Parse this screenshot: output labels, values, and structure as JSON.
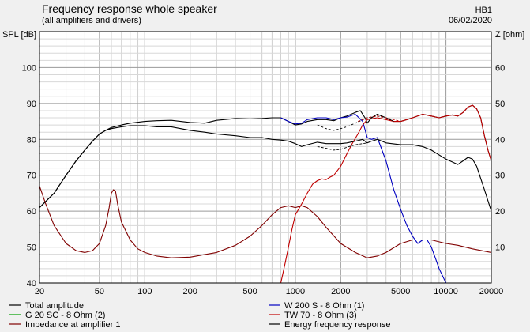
{
  "header": {
    "title": "Frequency response whole speaker",
    "subtitle": "(all amplifiers and drivers)",
    "ref": "HB1",
    "date": "06/02/2020"
  },
  "chart_data": {
    "type": "line",
    "title": "Frequency response whole speaker",
    "subtitle": "(all amplifiers and drivers)",
    "ylabel_left": "SPL [dB]",
    "ylabel_right": "Z [ohm]",
    "xscale": "log",
    "xlim": [
      20,
      20000
    ],
    "ylim_left": [
      40,
      110
    ],
    "ylim_right": [
      0,
      70
    ],
    "grid": true,
    "x_ticks": [
      20,
      50,
      100,
      200,
      500,
      1000,
      2000,
      5000,
      10000,
      20000
    ],
    "x_tick_labels": [
      "20",
      "50",
      "100",
      "200",
      "500",
      "1000",
      "2000",
      "5000",
      "10000",
      "20000"
    ],
    "y_ticks_left": [
      40,
      50,
      60,
      70,
      80,
      90,
      100
    ],
    "y_ticks_right": [
      10,
      20,
      30,
      40,
      50,
      60
    ],
    "legend_position": "bottom",
    "series": [
      {
        "name": "Total amplitude",
        "color": "#000000",
        "axis": "left",
        "points": [
          [
            20,
            61
          ],
          [
            25,
            65
          ],
          [
            30,
            70
          ],
          [
            35,
            74
          ],
          [
            40,
            77
          ],
          [
            45,
            79.5
          ],
          [
            50,
            81.5
          ],
          [
            55,
            82.5
          ],
          [
            60,
            83.3
          ],
          [
            70,
            84
          ],
          [
            80,
            84.5
          ],
          [
            100,
            85
          ],
          [
            120,
            85.2
          ],
          [
            150,
            85.3
          ],
          [
            200,
            84.7
          ],
          [
            250,
            84.5
          ],
          [
            300,
            85.3
          ],
          [
            400,
            85.8
          ],
          [
            500,
            85.7
          ],
          [
            600,
            85.8
          ],
          [
            700,
            86
          ],
          [
            800,
            86
          ],
          [
            900,
            85
          ],
          [
            1000,
            84
          ],
          [
            1100,
            84.3
          ],
          [
            1200,
            85
          ],
          [
            1400,
            85.5
          ],
          [
            1600,
            85.5
          ],
          [
            1800,
            85.2
          ],
          [
            2000,
            86
          ],
          [
            2200,
            86.5
          ],
          [
            2500,
            87.5
          ],
          [
            2700,
            88
          ],
          [
            2900,
            86
          ],
          [
            3000,
            84.5
          ],
          [
            3200,
            86
          ],
          [
            3500,
            87
          ],
          [
            4000,
            86
          ],
          [
            4500,
            85
          ],
          [
            5000,
            85
          ],
          [
            5500,
            85.5
          ],
          [
            6000,
            86
          ],
          [
            7000,
            87
          ],
          [
            8000,
            86.5
          ],
          [
            9000,
            86
          ],
          [
            10000,
            86.5
          ],
          [
            11000,
            86.8
          ],
          [
            12000,
            86.5
          ],
          [
            13000,
            87.5
          ],
          [
            14000,
            89
          ],
          [
            15000,
            89.5
          ],
          [
            16000,
            88.5
          ],
          [
            17000,
            86
          ],
          [
            18000,
            81
          ],
          [
            19000,
            77
          ],
          [
            20000,
            74
          ]
        ]
      },
      {
        "name": "W 200 S - 8 Ohm (1)",
        "color": "#0000c0",
        "axis": "left",
        "points": [
          [
            800,
            86
          ],
          [
            900,
            85
          ],
          [
            1000,
            84.3
          ],
          [
            1100,
            84.5
          ],
          [
            1200,
            85.5
          ],
          [
            1400,
            86
          ],
          [
            1600,
            86
          ],
          [
            1800,
            85.5
          ],
          [
            2000,
            86
          ],
          [
            2200,
            86.2
          ],
          [
            2500,
            87
          ],
          [
            2800,
            85
          ],
          [
            3000,
            80.5
          ],
          [
            3200,
            80
          ],
          [
            3500,
            80.5
          ],
          [
            4000,
            74
          ],
          [
            4500,
            66
          ],
          [
            5000,
            60.5
          ],
          [
            5500,
            56
          ],
          [
            6000,
            53
          ],
          [
            6500,
            51
          ],
          [
            7000,
            52
          ],
          [
            7500,
            52
          ],
          [
            8000,
            50
          ],
          [
            8500,
            47
          ],
          [
            9000,
            44
          ],
          [
            10000,
            40
          ]
        ]
      },
      {
        "name": "G 20 SC - 8 Ohm (2)",
        "color": "#00a000",
        "axis": "left",
        "points": [
          [
            20,
            40
          ],
          [
            20000,
            40
          ]
        ]
      },
      {
        "name": "TW 70 - 8 Ohm (3)",
        "color": "#c00000",
        "axis": "left",
        "points": [
          [
            800,
            40
          ],
          [
            850,
            45
          ],
          [
            900,
            50
          ],
          [
            950,
            55
          ],
          [
            1000,
            59
          ],
          [
            1100,
            62
          ],
          [
            1200,
            65
          ],
          [
            1300,
            67.5
          ],
          [
            1400,
            68.5
          ],
          [
            1500,
            69
          ],
          [
            1600,
            68.8
          ],
          [
            1700,
            69.5
          ],
          [
            1800,
            70
          ],
          [
            2000,
            72.5
          ],
          [
            2200,
            76
          ],
          [
            2400,
            79
          ],
          [
            2600,
            81.5
          ],
          [
            2800,
            84
          ],
          [
            3000,
            85.5
          ],
          [
            3500,
            86
          ],
          [
            4000,
            85.5
          ],
          [
            4500,
            85
          ],
          [
            5000,
            85
          ],
          [
            5500,
            85.5
          ],
          [
            6000,
            86
          ],
          [
            7000,
            87
          ],
          [
            8000,
            86.5
          ],
          [
            9000,
            86
          ],
          [
            10000,
            86.5
          ],
          [
            11000,
            86.8
          ],
          [
            12000,
            86.5
          ],
          [
            13000,
            87.5
          ],
          [
            14000,
            89
          ],
          [
            15000,
            89.5
          ],
          [
            16000,
            88.5
          ],
          [
            17000,
            86
          ],
          [
            18000,
            81
          ],
          [
            19000,
            77
          ],
          [
            20000,
            74
          ]
        ]
      },
      {
        "name": "Impedance at amplifier 1",
        "color": "#800000",
        "axis": "right",
        "points": [
          [
            20,
            27
          ],
          [
            22,
            22
          ],
          [
            25,
            16
          ],
          [
            30,
            11
          ],
          [
            35,
            9
          ],
          [
            40,
            8.5
          ],
          [
            45,
            9
          ],
          [
            50,
            11
          ],
          [
            55,
            16
          ],
          [
            58,
            21
          ],
          [
            60,
            25
          ],
          [
            62,
            26
          ],
          [
            64,
            25.5
          ],
          [
            66,
            22
          ],
          [
            70,
            17
          ],
          [
            80,
            12
          ],
          [
            90,
            9.5
          ],
          [
            100,
            8.5
          ],
          [
            120,
            7.5
          ],
          [
            150,
            7
          ],
          [
            200,
            7.2
          ],
          [
            300,
            8.5
          ],
          [
            400,
            10.5
          ],
          [
            500,
            13
          ],
          [
            600,
            16
          ],
          [
            700,
            19
          ],
          [
            800,
            21
          ],
          [
            900,
            21.5
          ],
          [
            1000,
            21
          ],
          [
            1100,
            21.5
          ],
          [
            1200,
            21
          ],
          [
            1400,
            18.5
          ],
          [
            1600,
            15.5
          ],
          [
            2000,
            11
          ],
          [
            2500,
            8.5
          ],
          [
            3000,
            7
          ],
          [
            3500,
            7.5
          ],
          [
            4000,
            8.5
          ],
          [
            5000,
            11
          ],
          [
            6000,
            12
          ],
          [
            7000,
            12
          ],
          [
            8000,
            12
          ],
          [
            10000,
            11
          ],
          [
            12000,
            10.5
          ],
          [
            15000,
            9.5
          ],
          [
            20000,
            8.5
          ]
        ]
      },
      {
        "name": "Energy frequency response",
        "color": "#000000",
        "axis": "left",
        "points": [
          [
            20,
            61
          ],
          [
            25,
            65
          ],
          [
            30,
            70
          ],
          [
            35,
            74
          ],
          [
            40,
            77
          ],
          [
            45,
            79.5
          ],
          [
            50,
            81.5
          ],
          [
            55,
            82.5
          ],
          [
            60,
            83
          ],
          [
            70,
            83.5
          ],
          [
            80,
            83.8
          ],
          [
            100,
            83.8
          ],
          [
            120,
            83.5
          ],
          [
            150,
            83.5
          ],
          [
            200,
            82.5
          ],
          [
            250,
            82
          ],
          [
            300,
            81.5
          ],
          [
            400,
            81
          ],
          [
            500,
            80.5
          ],
          [
            600,
            80.5
          ],
          [
            700,
            80
          ],
          [
            800,
            79.8
          ],
          [
            900,
            79.5
          ],
          [
            1000,
            78.8
          ],
          [
            1100,
            78
          ],
          [
            1200,
            78.5
          ],
          [
            1400,
            79.2
          ],
          [
            1600,
            78.8
          ],
          [
            2000,
            78.8
          ],
          [
            2200,
            79
          ],
          [
            2500,
            79.5
          ],
          [
            2800,
            80
          ],
          [
            3000,
            79
          ],
          [
            3200,
            79.5
          ],
          [
            3500,
            80
          ],
          [
            4000,
            79
          ],
          [
            5000,
            78.5
          ],
          [
            6000,
            78.5
          ],
          [
            7000,
            78
          ],
          [
            8000,
            77
          ],
          [
            10000,
            74.5
          ],
          [
            12000,
            73
          ],
          [
            13000,
            74
          ],
          [
            14000,
            75
          ],
          [
            15000,
            74.5
          ],
          [
            16000,
            72.5
          ],
          [
            18000,
            66
          ],
          [
            20000,
            60
          ]
        ]
      },
      {
        "name": "",
        "color": "#000000",
        "axis": "left",
        "style": "dashed",
        "points": [
          [
            1400,
            84
          ],
          [
            1600,
            83
          ],
          [
            1800,
            82.5
          ],
          [
            2000,
            83
          ],
          [
            2200,
            83.5
          ],
          [
            2500,
            84.5
          ],
          [
            3000,
            86
          ],
          [
            3500,
            86.5
          ],
          [
            4000,
            86
          ],
          [
            4500,
            85
          ]
        ]
      },
      {
        "name": "",
        "color": "#c00000",
        "axis": "left",
        "style": "dashed",
        "points": [
          [
            2600,
            85
          ],
          [
            3000,
            86
          ],
          [
            3500,
            86.5
          ],
          [
            4000,
            86
          ],
          [
            4500,
            85.5
          ],
          [
            5000,
            85
          ]
        ]
      },
      {
        "name": "",
        "color": "#000000",
        "axis": "left",
        "style": "dashed",
        "points": [
          [
            1400,
            78
          ],
          [
            1600,
            77.5
          ],
          [
            1800,
            77
          ],
          [
            2000,
            77.2
          ],
          [
            2200,
            77.8
          ],
          [
            2500,
            78.5
          ],
          [
            3000,
            79
          ]
        ]
      }
    ]
  },
  "legend": {
    "items": [
      {
        "label": "Total amplitude",
        "color": "#000000"
      },
      {
        "label": "W 200 S - 8 Ohm (1)",
        "color": "#0000c0"
      },
      {
        "label": "G 20 SC - 8 Ohm (2)",
        "color": "#00a000"
      },
      {
        "label": "TW 70 - 8 Ohm (3)",
        "color": "#c00000"
      },
      {
        "label": "Impedance at amplifier 1",
        "color": "#800000"
      },
      {
        "label": "Energy frequency response",
        "color": "#000000"
      }
    ]
  }
}
